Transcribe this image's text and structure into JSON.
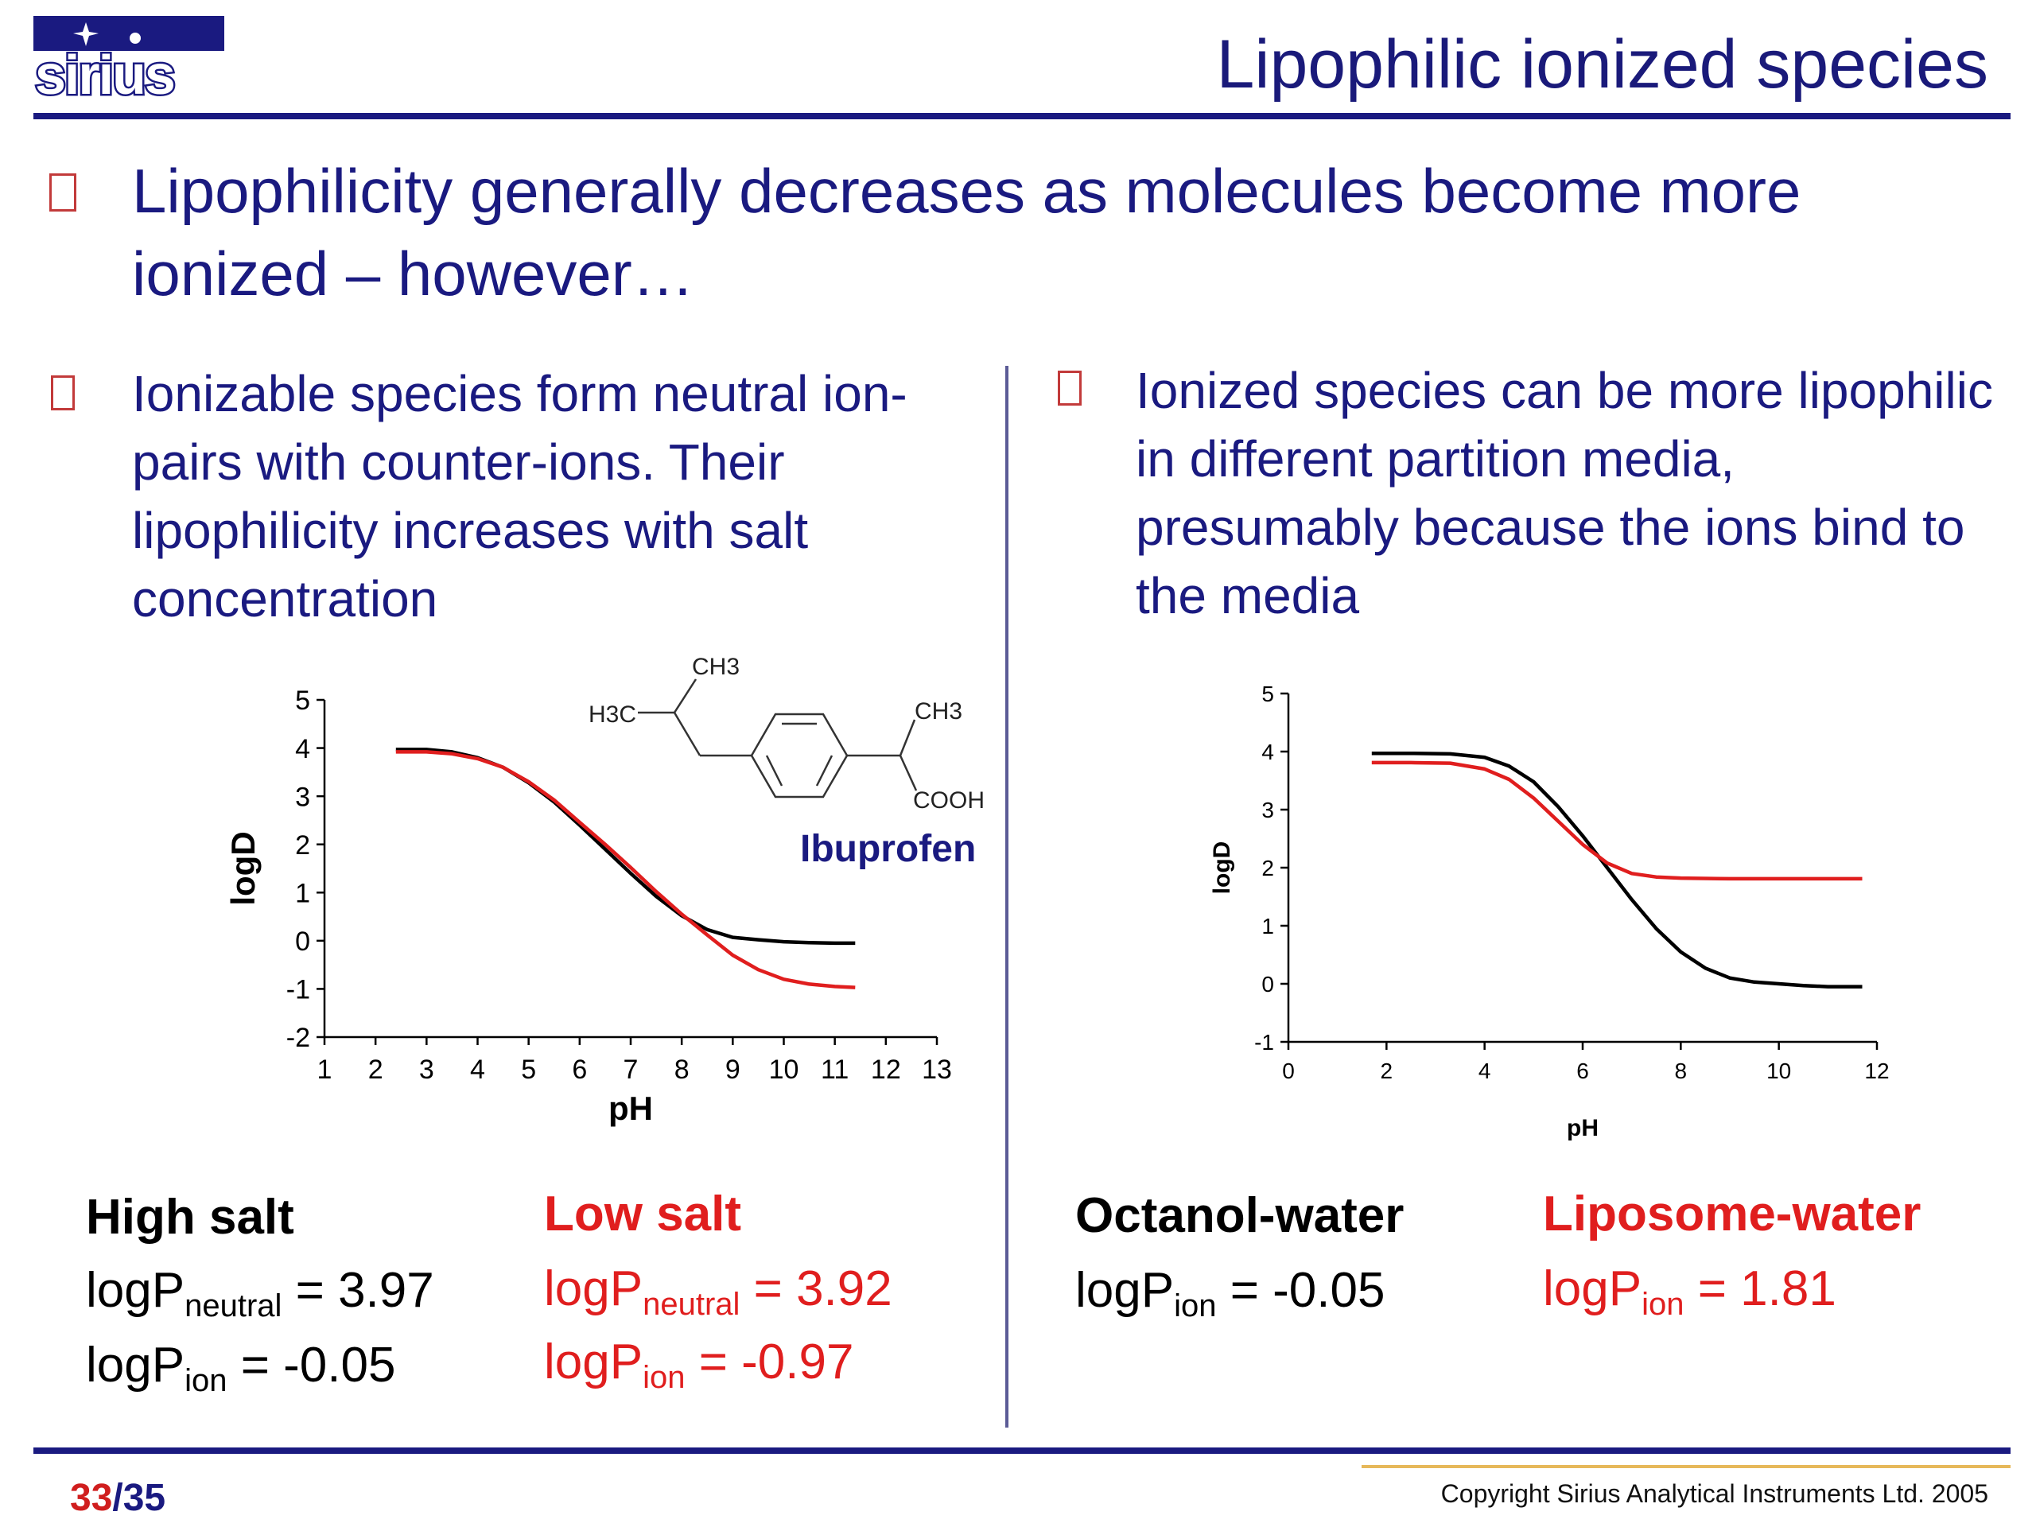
{
  "header": {
    "logo_text": "sirius",
    "title": "Lipophilic ionized species"
  },
  "main_bullet": "Lipophilicity generally decreases as molecules become more ionized – however…",
  "left_bullet": "Ionizable species form neutral ion-pairs with counter-ions. Their lipophilicity increases with salt concentration",
  "right_bullet": "Ionized species can be more lipophilic in different partition media, presumably because the ions bind to the media",
  "molecule": {
    "name": "Ibuprofen",
    "labels": [
      "CH3",
      "H3C",
      "CH3",
      "COOH"
    ]
  },
  "legend_left": {
    "high_salt": {
      "title": "High salt",
      "neutral": {
        "prefix": "logP",
        "sub": "neutral",
        "value": " = 3.97"
      },
      "ion": {
        "prefix": "logP",
        "sub": "ion",
        "value": " = -0.05"
      }
    },
    "low_salt": {
      "title": "Low salt",
      "neutral": {
        "prefix": "logP",
        "sub": "neutral",
        "value": " = 3.92"
      },
      "ion": {
        "prefix": "logP",
        "sub": "ion",
        "value": " = -0.97"
      }
    }
  },
  "legend_right": {
    "octanol": {
      "title": "Octanol-water",
      "ion": {
        "prefix": "logP",
        "sub": "ion",
        "value": " = -0.05"
      }
    },
    "liposome": {
      "title": "Liposome-water",
      "ion": {
        "prefix": "logP",
        "sub": "ion",
        "value": " = 1.81"
      }
    }
  },
  "footer": {
    "page_current": "33",
    "page_sep_total": "/35",
    "copyright": "Copyright Sirius Analytical Instruments Ltd. 2005"
  },
  "colors": {
    "navy": "#1a1a80",
    "red": "#e01e1e",
    "black": "#000000",
    "gold": "#e6b85a"
  },
  "chart_data": [
    {
      "type": "line",
      "xlabel": "pH",
      "ylabel": "logD",
      "xlim": [
        1,
        13
      ],
      "ylim": [
        -2,
        5
      ],
      "xticks": [
        1,
        2,
        3,
        4,
        5,
        6,
        7,
        8,
        9,
        10,
        11,
        12,
        13
      ],
      "yticks": [
        -2,
        -1,
        0,
        1,
        2,
        3,
        4,
        5
      ],
      "grid": false,
      "series": [
        {
          "color": "#000000",
          "x": [
            2.4,
            3,
            3.5,
            4,
            4.5,
            5,
            5.5,
            6,
            6.5,
            7,
            7.5,
            8,
            8.5,
            9,
            9.5,
            10,
            10.5,
            11,
            11.4
          ],
          "y": [
            3.97,
            3.97,
            3.92,
            3.8,
            3.6,
            3.28,
            2.88,
            2.4,
            1.9,
            1.4,
            0.92,
            0.52,
            0.23,
            0.07,
            0.02,
            -0.02,
            -0.04,
            -0.05,
            -0.05
          ]
        },
        {
          "color": "#e01e1e",
          "x": [
            2.4,
            3,
            3.5,
            4,
            4.5,
            5,
            5.5,
            6,
            6.5,
            7,
            7.5,
            8,
            8.5,
            9,
            9.5,
            10,
            10.5,
            11,
            11.4
          ],
          "y": [
            3.92,
            3.92,
            3.88,
            3.78,
            3.6,
            3.3,
            2.92,
            2.46,
            2.0,
            1.52,
            1.02,
            0.55,
            0.12,
            -0.3,
            -0.6,
            -0.8,
            -0.9,
            -0.95,
            -0.97
          ]
        }
      ]
    },
    {
      "type": "line",
      "xlabel": "pH",
      "ylabel": "logD",
      "xlim": [
        0,
        12
      ],
      "ylim": [
        -1,
        5
      ],
      "xticks": [
        0,
        2,
        4,
        6,
        8,
        10,
        12
      ],
      "yticks": [
        -1,
        0,
        1,
        2,
        3,
        4,
        5
      ],
      "grid": false,
      "series": [
        {
          "color": "#000000",
          "x": [
            1.7,
            2.5,
            3.3,
            4,
            4.5,
            5,
            5.5,
            6,
            6.5,
            7,
            7.5,
            8,
            8.5,
            9,
            9.5,
            10,
            10.5,
            11,
            11.7
          ],
          "y": [
            3.97,
            3.97,
            3.96,
            3.9,
            3.75,
            3.48,
            3.05,
            2.55,
            2.0,
            1.45,
            0.95,
            0.55,
            0.27,
            0.1,
            0.03,
            0.0,
            -0.03,
            -0.05,
            -0.05
          ]
        },
        {
          "color": "#e01e1e",
          "x": [
            1.7,
            2.5,
            3.3,
            4,
            4.5,
            5,
            5.5,
            6,
            6.5,
            7,
            7.5,
            8,
            9,
            10,
            11,
            11.7
          ],
          "y": [
            3.81,
            3.81,
            3.8,
            3.7,
            3.52,
            3.2,
            2.8,
            2.4,
            2.08,
            1.9,
            1.84,
            1.82,
            1.81,
            1.81,
            1.81,
            1.81
          ]
        }
      ]
    }
  ]
}
